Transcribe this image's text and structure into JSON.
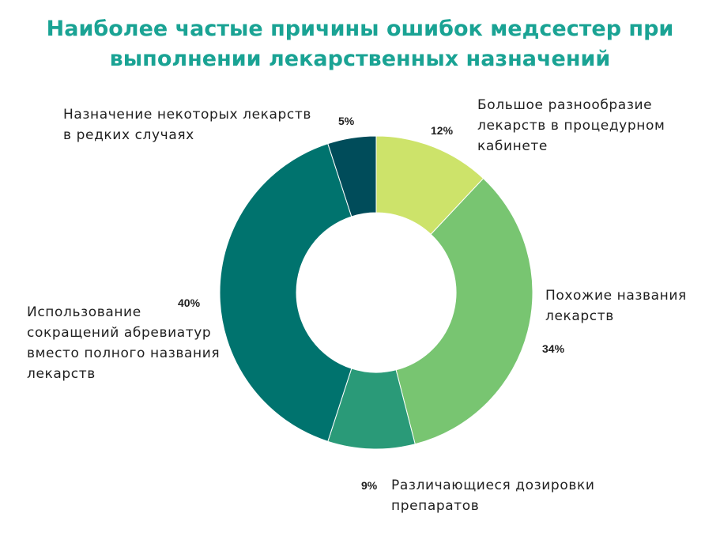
{
  "title": {
    "line1": "Наиболее частые причины ошибок медсестер при",
    "line2": "выполнении лекарственных назначений"
  },
  "chart_data": {
    "type": "pie",
    "variant": "donut",
    "title": "Наиболее частые причины ошибок медсестер при выполнении лекарственных назначений",
    "start_angle_deg": 0,
    "direction": "clockwise",
    "slices": [
      {
        "label_lines": [
          "Большое разнообразие",
          "лекарств в процедурном",
          "кабинете"
        ],
        "value": 12,
        "value_label": "12%",
        "color": "#cde36a"
      },
      {
        "label_lines": [
          "Похожие названия",
          "лекарств"
        ],
        "value": 34,
        "value_label": "34%",
        "color": "#78c571"
      },
      {
        "label_lines": [
          "Различающиеся дозировки",
          "препаратов"
        ],
        "value": 9,
        "value_label": "9%",
        "color": "#2a9a78"
      },
      {
        "label_lines": [
          "Использование",
          "сокращений абревиатур",
          "вместо полного названия",
          "лекарств"
        ],
        "value": 40,
        "value_label": "40%",
        "color": "#00736e"
      },
      {
        "label_lines": [
          "Назначение некоторых лекарств",
          "в редких случаях"
        ],
        "value": 5,
        "value_label": "5%",
        "color": "#004c5a"
      }
    ]
  }
}
